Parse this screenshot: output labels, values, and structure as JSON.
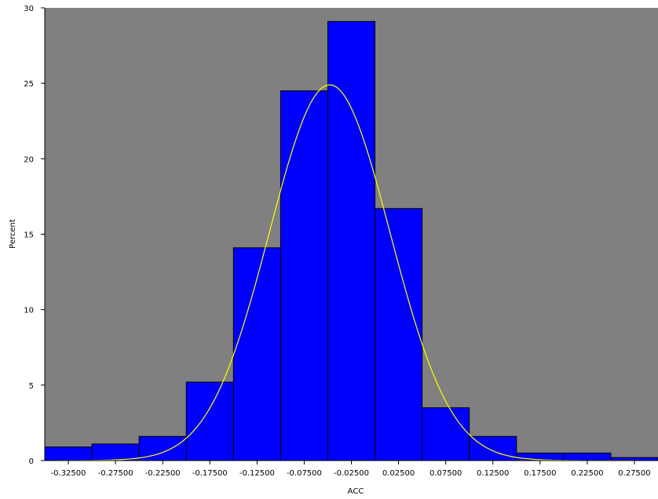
{
  "chart_data": {
    "type": "bar",
    "title": "",
    "xlabel": "ACC",
    "ylabel": "Percent",
    "ylim": [
      0,
      30
    ],
    "yticks": [
      0,
      5,
      10,
      15,
      20,
      25,
      30
    ],
    "xlim": [
      -0.35,
      0.3
    ],
    "xtick_values": [
      -0.325,
      -0.275,
      -0.225,
      -0.175,
      -0.125,
      -0.075,
      -0.025,
      0.025,
      0.075,
      0.125,
      0.175,
      0.225,
      0.275
    ],
    "xtick_labels": [
      "-0.32500",
      "-0.27500",
      "-0.22500",
      "-0.17500",
      "-0.12500",
      "-0.07500",
      "-0.02500",
      "0.02500",
      "0.07500",
      "0.12500",
      "0.17500",
      "0.22500",
      "0.27500"
    ],
    "bin_width": 0.05,
    "categories": [
      "-0.32500",
      "-0.27500",
      "-0.22500",
      "-0.17500",
      "-0.12500",
      "-0.07500",
      "-0.02500",
      "0.02500",
      "0.07500",
      "0.12500",
      "0.17500",
      "0.22500",
      "0.27500"
    ],
    "values": [
      0.9,
      1.1,
      1.6,
      5.2,
      14.1,
      24.5,
      29.1,
      16.7,
      3.5,
      1.6,
      0.5,
      0.5,
      0.2
    ],
    "normal_curve": {
      "mean": -0.048,
      "sd": 0.064,
      "peak_percent": 24.9
    },
    "grid": false,
    "colors": {
      "background": "#ffffff",
      "plot_area": "#808080",
      "bar_fill": "#0000ff",
      "bar_edge": "#000000",
      "curve": "#ffff00"
    }
  }
}
